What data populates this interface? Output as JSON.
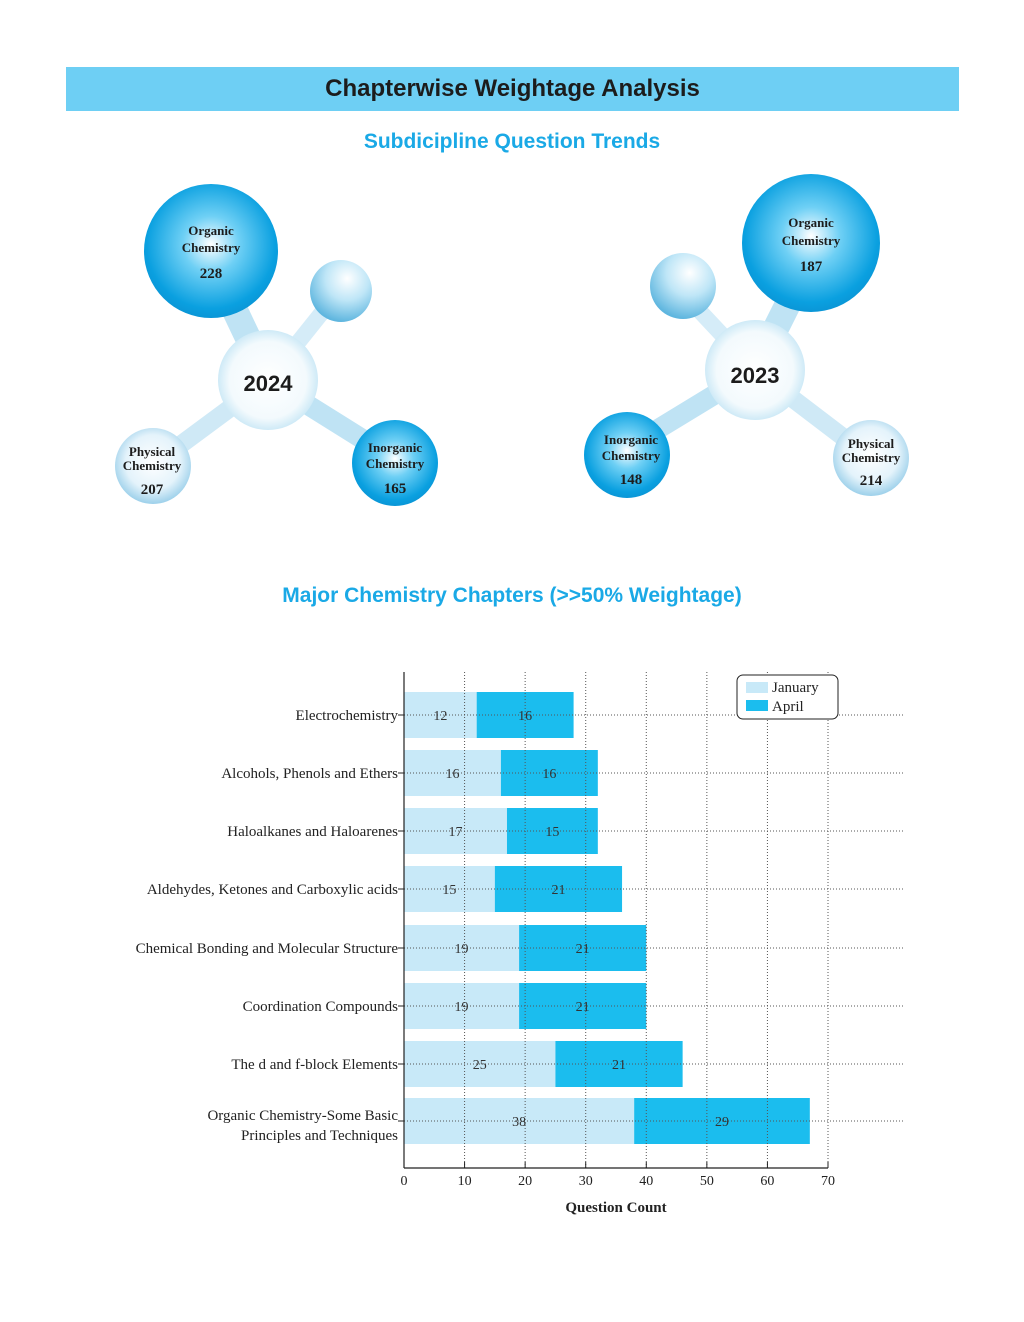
{
  "header": {
    "title": "Chapterwise Weightage Analysis",
    "subtitle": "Subdicipline Question Trends",
    "chart_title": "Major Chemistry Chapters (>>50% Weightage)"
  },
  "bubbles": {
    "left": {
      "year": "2024",
      "organic": {
        "line1": "Organic",
        "line2": "Chemistry",
        "value": "228"
      },
      "inorganic": {
        "line1": "Inorganic",
        "line2": "Chemistry",
        "value": "165"
      },
      "physical": {
        "line1": "Physical",
        "line2": "Chemistry",
        "value": "207"
      }
    },
    "right": {
      "year": "2023",
      "organic": {
        "line1": "Organic",
        "line2": "Chemistry",
        "value": "187"
      },
      "inorganic": {
        "line1": "Inorganic",
        "line2": "Chemistry",
        "value": "148"
      },
      "physical": {
        "line1": "Physical",
        "line2": "Chemistry",
        "value": "214"
      }
    }
  },
  "colors": {
    "banner": "#6ecff4",
    "title_blue": "#1aa9e6",
    "january": "#c8e9f8",
    "april": "#1bbdee",
    "bubble_dark": "#0aa0e0",
    "bubble_light": "#cfeaf7"
  },
  "chart_data": {
    "type": "bar",
    "orientation": "horizontal",
    "stacked": true,
    "categories": [
      "Electrochemistry",
      "Alcohols, Phenols and Ethers",
      "Haloalkanes and Haloarenes",
      "Aldehydes, Ketones and Carboxylic acids",
      "Chemical Bonding and Molecular Structure",
      "Coordination Compounds",
      "The d and f-block Elements",
      "Organic Chemistry-Some Basic Principles and Techniques"
    ],
    "series": [
      {
        "name": "January",
        "values": [
          12,
          16,
          17,
          15,
          19,
          19,
          25,
          38
        ]
      },
      {
        "name": "April",
        "values": [
          16,
          16,
          15,
          21,
          21,
          21,
          21,
          29
        ]
      }
    ],
    "xlabel": "Question Count",
    "xlim": [
      0,
      70
    ],
    "xticks": [
      0,
      10,
      20,
      30,
      40,
      50,
      60,
      70
    ],
    "grid": true,
    "legend": "top-right"
  }
}
